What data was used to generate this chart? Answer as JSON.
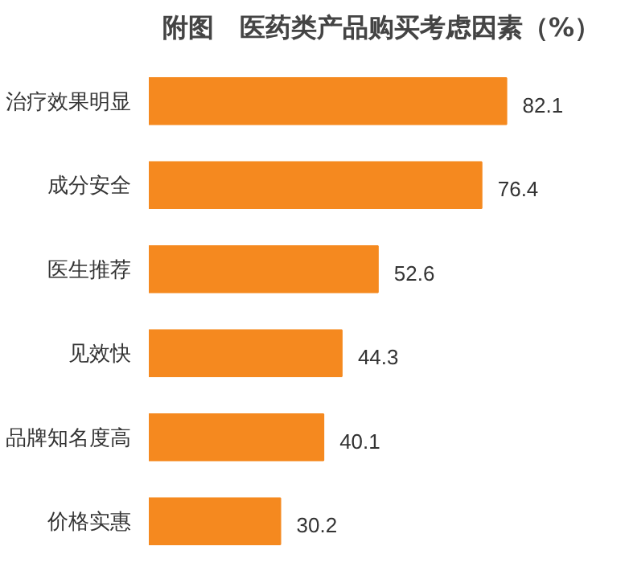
{
  "chart_data": {
    "type": "bar",
    "orientation": "horizontal",
    "title": "附图　医药类产品购买考虑因素（%）",
    "categories": [
      "治疗效果明显",
      "成分安全",
      "医生推荐",
      "见效快",
      "品牌知名度高",
      "价格实惠"
    ],
    "values": [
      82.1,
      76.4,
      52.6,
      44.3,
      40.1,
      30.2
    ],
    "color": "#f5891f",
    "data_labels": true
  }
}
